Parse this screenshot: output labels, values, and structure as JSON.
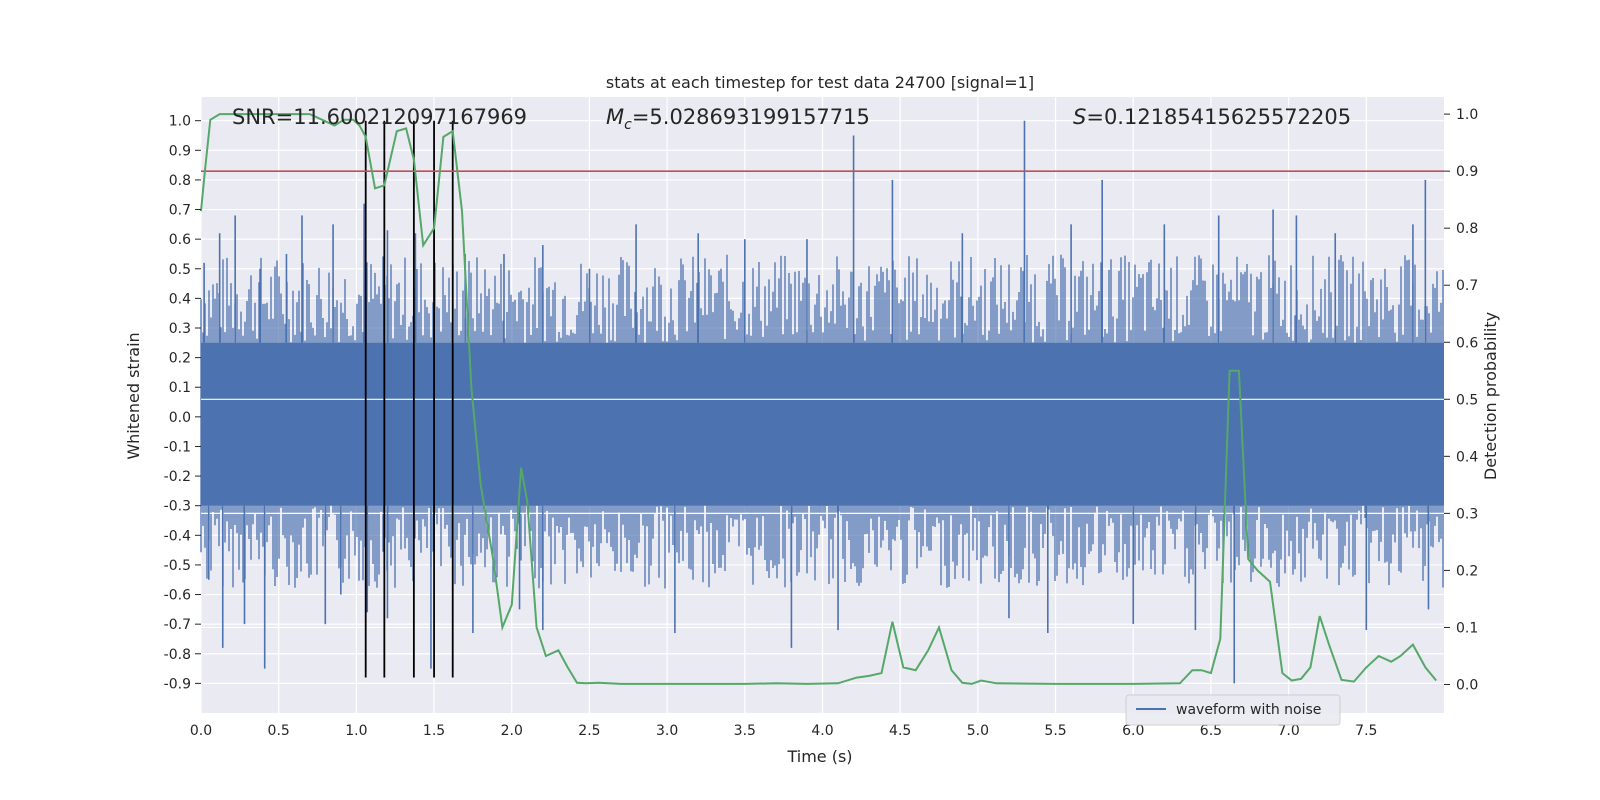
{
  "chart_data": {
    "type": "line",
    "title": "stats at each timestep for test data 24700 [signal=1]",
    "xlabel": "Time (s)",
    "ylabel_left": "Whitened strain",
    "ylabel_right": "Detection probability",
    "xlim": [
      0,
      8
    ],
    "ylim_left": [
      -1.0,
      1.08
    ],
    "ylim_right": [
      -0.05,
      1.03
    ],
    "x_ticks": [
      "0.0",
      "0.5",
      "1.0",
      "1.5",
      "2.0",
      "2.5",
      "3.0",
      "3.5",
      "4.0",
      "4.5",
      "5.0",
      "5.5",
      "6.0",
      "6.5",
      "7.0",
      "7.5"
    ],
    "x_tick_values": [
      0,
      0.5,
      1,
      1.5,
      2,
      2.5,
      3,
      3.5,
      4,
      4.5,
      5,
      5.5,
      6,
      6.5,
      7,
      7.5
    ],
    "y_left_ticks": [
      "1.0",
      "0.9",
      "0.8",
      "0.7",
      "0.6",
      "0.5",
      "0.4",
      "0.3",
      "0.2",
      "0.1",
      "0.0",
      "-0.1",
      "-0.2",
      "-0.3",
      "-0.4",
      "-0.5",
      "-0.6",
      "-0.7",
      "-0.8",
      "-0.9"
    ],
    "y_left_tick_values": [
      1.0,
      0.9,
      0.8,
      0.7,
      0.6,
      0.5,
      0.4,
      0.3,
      0.2,
      0.1,
      0.0,
      -0.1,
      -0.2,
      -0.3,
      -0.4,
      -0.5,
      -0.6,
      -0.7,
      -0.8,
      -0.9
    ],
    "y_right_ticks": [
      "1.0",
      "0.9",
      "0.8",
      "0.7",
      "0.6",
      "0.5",
      "0.4",
      "0.3",
      "0.2",
      "0.1",
      "0.0"
    ],
    "y_right_tick_values": [
      1.0,
      0.9,
      0.8,
      0.7,
      0.6,
      0.5,
      0.4,
      0.3,
      0.2,
      0.1,
      0.0
    ],
    "annotations": {
      "snr": "SNR=11.600212097167969",
      "mc_symbol": "M",
      "mc_sub": "c",
      "mc_value": "=5.028693199157715",
      "s_symbol": "S",
      "s_value": "=0.12185415625572205"
    },
    "legend": {
      "label": "waveform with noise",
      "placement": "lower-right"
    },
    "threshold_right": 0.9,
    "vertical_lines_x": [
      1.06,
      1.18,
      1.37,
      1.5,
      1.62
    ],
    "waveform": {
      "name": "waveform with noise",
      "band_upper": 0.25,
      "band_lower": -0.3,
      "spikes": [
        [
          0.02,
          0.52
        ],
        [
          0.05,
          -0.55
        ],
        [
          0.12,
          0.62
        ],
        [
          0.14,
          -0.78
        ],
        [
          0.22,
          0.68
        ],
        [
          0.28,
          -0.7
        ],
        [
          0.38,
          0.5
        ],
        [
          0.41,
          -0.85
        ],
        [
          0.55,
          0.55
        ],
        [
          0.65,
          0.68
        ],
        [
          0.8,
          -0.7
        ],
        [
          0.85,
          0.65
        ],
        [
          0.9,
          -0.6
        ],
        [
          1.05,
          0.72
        ],
        [
          1.07,
          -0.66
        ],
        [
          1.2,
          0.63
        ],
        [
          1.2,
          -0.68
        ],
        [
          1.38,
          0.62
        ],
        [
          1.48,
          -0.85
        ],
        [
          1.5,
          0.6
        ],
        [
          1.7,
          0.55
        ],
        [
          1.75,
          -0.73
        ],
        [
          1.95,
          0.55
        ],
        [
          2.05,
          -0.65
        ],
        [
          2.2,
          0.58
        ],
        [
          2.2,
          -0.72
        ],
        [
          2.5,
          0.5
        ],
        [
          2.8,
          0.65
        ],
        [
          3.05,
          -0.73
        ],
        [
          3.2,
          0.62
        ],
        [
          3.5,
          0.6
        ],
        [
          3.8,
          -0.78
        ],
        [
          3.9,
          0.6
        ],
        [
          4.1,
          -0.72
        ],
        [
          4.2,
          0.95
        ],
        [
          4.45,
          0.8
        ],
        [
          4.9,
          0.62
        ],
        [
          5.2,
          -0.68
        ],
        [
          5.3,
          1.0
        ],
        [
          5.45,
          -0.73
        ],
        [
          5.6,
          0.65
        ],
        [
          5.8,
          0.8
        ],
        [
          6.0,
          -0.7
        ],
        [
          6.2,
          0.65
        ],
        [
          6.4,
          -0.72
        ],
        [
          6.55,
          0.68
        ],
        [
          6.65,
          -0.9
        ],
        [
          6.9,
          0.7
        ],
        [
          7.05,
          0.68
        ],
        [
          7.3,
          0.62
        ],
        [
          7.5,
          -0.72
        ],
        [
          7.8,
          0.65
        ],
        [
          7.88,
          0.8
        ],
        [
          7.9,
          -0.65
        ]
      ]
    },
    "detection_probability": {
      "x": [
        0.0,
        0.025,
        0.06,
        0.12,
        0.2,
        0.3,
        0.4,
        0.5,
        0.6,
        0.7,
        0.78,
        0.86,
        0.92,
        0.98,
        1.02,
        1.06,
        1.12,
        1.18,
        1.26,
        1.32,
        1.37,
        1.43,
        1.5,
        1.56,
        1.62,
        1.68,
        1.74,
        1.8,
        1.88,
        1.94,
        2.0,
        2.06,
        2.1,
        2.16,
        2.22,
        2.3,
        2.36,
        2.42,
        2.48,
        2.56,
        2.7,
        2.9,
        3.2,
        3.5,
        3.7,
        3.9,
        4.1,
        4.22,
        4.3,
        4.38,
        4.45,
        4.52,
        4.6,
        4.68,
        4.75,
        4.83,
        4.9,
        4.96,
        5.02,
        5.12,
        5.5,
        6.0,
        6.3,
        6.38,
        6.44,
        6.5,
        6.56,
        6.62,
        6.68,
        6.74,
        6.8,
        6.88,
        6.96,
        7.02,
        7.08,
        7.14,
        7.2,
        7.26,
        7.34,
        7.42,
        7.5,
        7.58,
        7.66,
        7.72,
        7.8,
        7.88,
        7.95
      ],
      "y": [
        0.83,
        0.9,
        0.99,
        1.0,
        1.0,
        1.0,
        1.0,
        1.0,
        1.0,
        1.0,
        0.99,
        0.98,
        0.99,
        0.99,
        0.98,
        0.96,
        0.87,
        0.875,
        0.97,
        0.975,
        0.92,
        0.77,
        0.8,
        0.96,
        0.97,
        0.83,
        0.52,
        0.35,
        0.22,
        0.1,
        0.14,
        0.38,
        0.32,
        0.1,
        0.05,
        0.06,
        0.03,
        0.003,
        0.002,
        0.003,
        0.001,
        0.001,
        0.001,
        0.001,
        0.002,
        0.001,
        0.002,
        0.012,
        0.015,
        0.02,
        0.11,
        0.03,
        0.025,
        0.06,
        0.1,
        0.025,
        0.003,
        0.001,
        0.007,
        0.002,
        0.001,
        0.001,
        0.002,
        0.025,
        0.025,
        0.02,
        0.08,
        0.55,
        0.55,
        0.22,
        0.2,
        0.18,
        0.02,
        0.007,
        0.01,
        0.03,
        0.12,
        0.07,
        0.008,
        0.005,
        0.03,
        0.05,
        0.04,
        0.05,
        0.07,
        0.03,
        0.007
      ]
    }
  }
}
